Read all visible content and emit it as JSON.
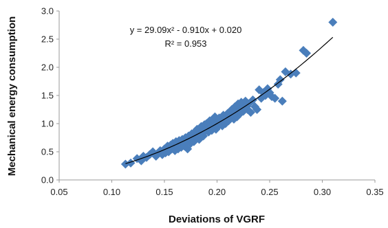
{
  "chart_data": {
    "type": "scatter",
    "xlabel": "Deviations of VGRF",
    "ylabel": "Mechanical energy consumption",
    "xlim": [
      0.05,
      0.35
    ],
    "ylim": [
      0.0,
      3.0
    ],
    "x_ticks": [
      "0.05",
      "0.10",
      "0.15",
      "0.20",
      "0.25",
      "0.30",
      "0.35"
    ],
    "y_ticks": [
      "0.0",
      "0.5",
      "1.0",
      "1.5",
      "2.0",
      "2.5",
      "3.0"
    ],
    "grid": false,
    "legend": "none",
    "marker": "diamond",
    "marker_color": "#4a7ebb",
    "trendline": {
      "type": "polynomial",
      "coefficients": [
        29.09,
        -0.91,
        0.02
      ],
      "x_range": [
        0.113,
        0.31
      ],
      "color": "#000000",
      "equation": "y = 29.09x² - 0.910x + 0.020",
      "r_squared": "R² = 0.953"
    },
    "points": [
      [
        0.113,
        0.28
      ],
      [
        0.118,
        0.3
      ],
      [
        0.124,
        0.38
      ],
      [
        0.128,
        0.34
      ],
      [
        0.13,
        0.42
      ],
      [
        0.133,
        0.4
      ],
      [
        0.136,
        0.45
      ],
      [
        0.139,
        0.5
      ],
      [
        0.142,
        0.42
      ],
      [
        0.144,
        0.48
      ],
      [
        0.146,
        0.52
      ],
      [
        0.148,
        0.45
      ],
      [
        0.15,
        0.55
      ],
      [
        0.151,
        0.48
      ],
      [
        0.153,
        0.6
      ],
      [
        0.154,
        0.5
      ],
      [
        0.156,
        0.62
      ],
      [
        0.157,
        0.55
      ],
      [
        0.158,
        0.65
      ],
      [
        0.159,
        0.58
      ],
      [
        0.16,
        0.52
      ],
      [
        0.161,
        0.68
      ],
      [
        0.162,
        0.6
      ],
      [
        0.163,
        0.55
      ],
      [
        0.164,
        0.7
      ],
      [
        0.165,
        0.62
      ],
      [
        0.166,
        0.58
      ],
      [
        0.167,
        0.72
      ],
      [
        0.168,
        0.65
      ],
      [
        0.169,
        0.6
      ],
      [
        0.17,
        0.75
      ],
      [
        0.171,
        0.68
      ],
      [
        0.172,
        0.55
      ],
      [
        0.173,
        0.78
      ],
      [
        0.174,
        0.7
      ],
      [
        0.175,
        0.65
      ],
      [
        0.176,
        0.82
      ],
      [
        0.177,
        0.72
      ],
      [
        0.178,
        0.68
      ],
      [
        0.179,
        0.85
      ],
      [
        0.18,
        0.75
      ],
      [
        0.181,
        0.9
      ],
      [
        0.182,
        0.8
      ],
      [
        0.183,
        0.72
      ],
      [
        0.184,
        0.88
      ],
      [
        0.185,
        0.95
      ],
      [
        0.186,
        0.82
      ],
      [
        0.187,
        0.78
      ],
      [
        0.188,
        0.98
      ],
      [
        0.189,
        0.88
      ],
      [
        0.19,
        1.0
      ],
      [
        0.191,
        0.92
      ],
      [
        0.192,
        0.85
      ],
      [
        0.193,
        1.05
      ],
      [
        0.194,
        0.95
      ],
      [
        0.195,
        0.88
      ],
      [
        0.196,
        1.08
      ],
      [
        0.197,
        0.98
      ],
      [
        0.198,
        1.12
      ],
      [
        0.199,
        0.9
      ],
      [
        0.2,
        1.02
      ],
      [
        0.201,
        0.95
      ],
      [
        0.202,
        1.1
      ],
      [
        0.203,
        1.0
      ],
      [
        0.204,
        1.05
      ],
      [
        0.205,
        0.96
      ],
      [
        0.206,
        1.15
      ],
      [
        0.207,
        1.08
      ],
      [
        0.208,
        1.0
      ],
      [
        0.209,
        1.12
      ],
      [
        0.21,
        1.18
      ],
      [
        0.211,
        1.05
      ],
      [
        0.212,
        1.2
      ],
      [
        0.213,
        1.1
      ],
      [
        0.214,
        1.25
      ],
      [
        0.215,
        1.15
      ],
      [
        0.216,
        1.08
      ],
      [
        0.217,
        1.3
      ],
      [
        0.218,
        1.2
      ],
      [
        0.219,
        1.12
      ],
      [
        0.22,
        1.35
      ],
      [
        0.221,
        1.25
      ],
      [
        0.222,
        1.18
      ],
      [
        0.223,
        1.38
      ],
      [
        0.224,
        1.28
      ],
      [
        0.225,
        1.22
      ],
      [
        0.226,
        1.32
      ],
      [
        0.227,
        1.4
      ],
      [
        0.228,
        1.3
      ],
      [
        0.229,
        1.25
      ],
      [
        0.23,
        1.35
      ],
      [
        0.232,
        1.2
      ],
      [
        0.234,
        1.42
      ],
      [
        0.236,
        1.3
      ],
      [
        0.238,
        1.25
      ],
      [
        0.24,
        1.6
      ],
      [
        0.242,
        1.45
      ],
      [
        0.244,
        1.55
      ],
      [
        0.246,
        1.5
      ],
      [
        0.248,
        1.62
      ],
      [
        0.25,
        1.55
      ],
      [
        0.252,
        1.48
      ],
      [
        0.255,
        1.45
      ],
      [
        0.258,
        1.7
      ],
      [
        0.26,
        1.78
      ],
      [
        0.262,
        1.4
      ],
      [
        0.265,
        1.92
      ],
      [
        0.27,
        1.88
      ],
      [
        0.275,
        1.9
      ],
      [
        0.282,
        2.3
      ],
      [
        0.285,
        2.25
      ],
      [
        0.31,
        2.8
      ]
    ]
  }
}
